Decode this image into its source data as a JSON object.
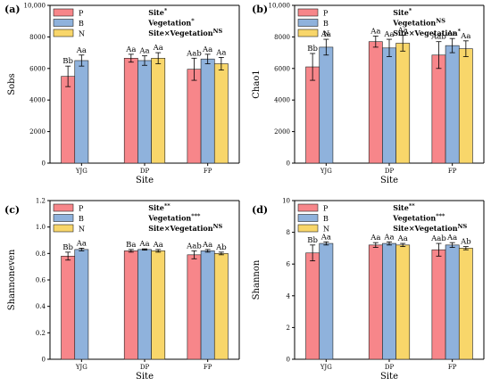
{
  "chart_data": [
    {
      "type": "bar",
      "panel_label": "(a)",
      "ylabel": "Sobs",
      "xlabel": "Site",
      "ylim": [
        0,
        10000
      ],
      "yticks": [
        0,
        2000,
        4000,
        6000,
        8000,
        10000
      ],
      "ytick_labels": [
        "0",
        "2000",
        "4000",
        "6000",
        "8000",
        "10,000"
      ],
      "categories": [
        "YJG",
        "DP",
        "FP"
      ],
      "series": [
        {
          "name": "P",
          "values": [
            5500,
            6650,
            5950
          ],
          "errors": [
            650,
            250,
            700
          ],
          "labels": [
            "Bb",
            "Aa",
            "Aab"
          ]
        },
        {
          "name": "B",
          "values": [
            6500,
            6500,
            6600
          ],
          "errors": [
            350,
            300,
            300
          ],
          "labels": [
            "Aa",
            "Aa",
            "Aa"
          ]
        },
        {
          "name": "N",
          "values": [
            null,
            6650,
            6300
          ],
          "errors": [
            null,
            350,
            400
          ],
          "labels": [
            "",
            "Aa",
            "Aa"
          ]
        }
      ],
      "stats": [
        {
          "text": "Site",
          "sup": "*"
        },
        {
          "text": "Vegetation",
          "sup": "*"
        },
        {
          "text": "Site×Vegetation",
          "sup": "NS"
        }
      ]
    },
    {
      "type": "bar",
      "panel_label": "(b)",
      "ylabel": "Chao1",
      "xlabel": "Site",
      "ylim": [
        0,
        10000
      ],
      "yticks": [
        0,
        2000,
        4000,
        6000,
        8000,
        10000
      ],
      "ytick_labels": [
        "0",
        "2000",
        "4000",
        "6000",
        "8000",
        "10,000"
      ],
      "categories": [
        "YJG",
        "DP",
        "FP"
      ],
      "series": [
        {
          "name": "P",
          "values": [
            6100,
            7700,
            6850
          ],
          "errors": [
            850,
            350,
            850
          ],
          "labels": [
            "Bb",
            "Aa",
            "Aab"
          ]
        },
        {
          "name": "B",
          "values": [
            7350,
            7300,
            7450
          ],
          "errors": [
            500,
            550,
            450
          ],
          "labels": [
            "Aa",
            "Aa",
            "Aa"
          ]
        },
        {
          "name": "N",
          "values": [
            null,
            7600,
            7250
          ],
          "errors": [
            null,
            500,
            500
          ],
          "labels": [
            "",
            "Aa",
            "Aa"
          ]
        }
      ],
      "stats": [
        {
          "text": "Site",
          "sup": "*"
        },
        {
          "text": "Vegetation",
          "sup": "NS"
        },
        {
          "text": "Site×Vegetation",
          "sup": "*"
        }
      ]
    },
    {
      "type": "bar",
      "panel_label": "(c)",
      "ylabel": "Shannoneven",
      "xlabel": "Site",
      "ylim": [
        0,
        1.2
      ],
      "yticks": [
        0,
        0.2,
        0.4,
        0.6,
        0.8,
        1.0,
        1.2
      ],
      "ytick_labels": [
        "0",
        "0.2",
        "0.4",
        "0.6",
        "0.8",
        "1.0",
        "1.2"
      ],
      "categories": [
        "YJG",
        "DP",
        "FP"
      ],
      "series": [
        {
          "name": "P",
          "values": [
            0.78,
            0.82,
            0.79
          ],
          "errors": [
            0.03,
            0.01,
            0.03
          ],
          "labels": [
            "Bb",
            "Ba",
            "Aab"
          ]
        },
        {
          "name": "B",
          "values": [
            0.83,
            0.83,
            0.82
          ],
          "errors": [
            0.01,
            0.005,
            0.01
          ],
          "labels": [
            "Aa",
            "Aa",
            "Aa"
          ]
        },
        {
          "name": "N",
          "values": [
            null,
            0.82,
            0.8
          ],
          "errors": [
            null,
            0.01,
            0.01
          ],
          "labels": [
            "",
            "Aa",
            "Ab"
          ]
        }
      ],
      "stats": [
        {
          "text": "Site",
          "sup": "**"
        },
        {
          "text": "Vegetation",
          "sup": "***"
        },
        {
          "text": "Site×Vegetation",
          "sup": "NS"
        }
      ]
    },
    {
      "type": "bar",
      "panel_label": "(d)",
      "ylabel": "Shannon",
      "xlabel": "Site",
      "ylim": [
        0,
        10
      ],
      "yticks": [
        0,
        2,
        4,
        6,
        8,
        10
      ],
      "ytick_labels": [
        "0",
        "2",
        "4",
        "6",
        "8",
        "10"
      ],
      "categories": [
        "YJG",
        "DP",
        "FP"
      ],
      "series": [
        {
          "name": "P",
          "values": [
            6.7,
            7.2,
            6.9
          ],
          "errors": [
            0.5,
            0.15,
            0.4
          ],
          "labels": [
            "Bb",
            "Aa",
            "Aab"
          ]
        },
        {
          "name": "B",
          "values": [
            7.3,
            7.3,
            7.2
          ],
          "errors": [
            0.1,
            0.1,
            0.15
          ],
          "labels": [
            "Aa",
            "Aa",
            "Aa"
          ]
        },
        {
          "name": "N",
          "values": [
            null,
            7.2,
            7.0
          ],
          "errors": [
            null,
            0.1,
            0.1
          ],
          "labels": [
            "",
            "Aa",
            "Ab"
          ]
        }
      ],
      "stats": [
        {
          "text": "Site",
          "sup": "**"
        },
        {
          "text": "Vegetation",
          "sup": "***"
        },
        {
          "text": "Site×Vegetation",
          "sup": "NS"
        }
      ]
    }
  ],
  "colors": {
    "P": "#f7868a",
    "B": "#8fb2dc",
    "N": "#f8d66a"
  }
}
